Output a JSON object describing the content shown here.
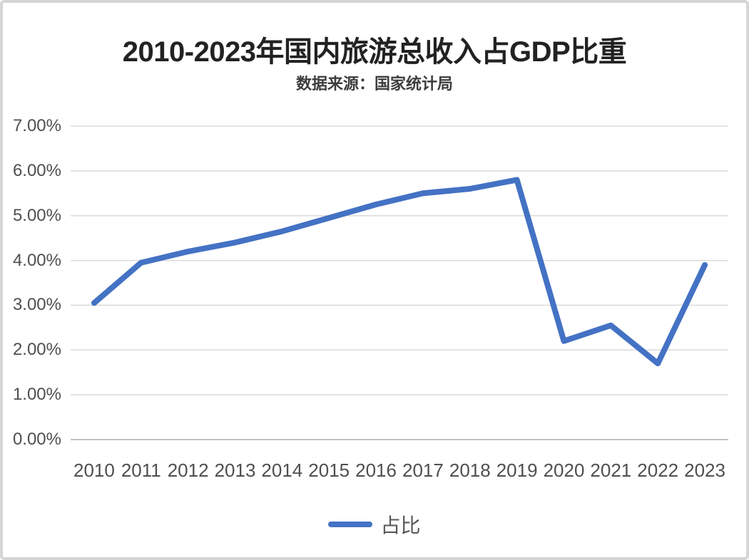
{
  "chart_data": {
    "type": "line",
    "title": "2010-2023年国内旅游总收入占GDP比重",
    "subtitle": "数据来源：国家统计局",
    "categories": [
      "2010",
      "2011",
      "2012",
      "2013",
      "2014",
      "2015",
      "2016",
      "2017",
      "2018",
      "2019",
      "2020",
      "2021",
      "2022",
      "2023"
    ],
    "series": [
      {
        "name": "占比",
        "color": "#4472C4",
        "values": [
          3.05,
          3.95,
          4.2,
          4.4,
          4.65,
          4.95,
          5.25,
          5.5,
          5.6,
          5.8,
          2.2,
          2.55,
          1.7,
          3.9
        ]
      }
    ],
    "ylim": [
      0,
      7
    ],
    "ytick_labels": [
      "0.00%",
      "1.00%",
      "2.00%",
      "3.00%",
      "4.00%",
      "5.00%",
      "6.00%",
      "7.00%"
    ],
    "xlabel": "",
    "ylabel": "",
    "grid": "horizontal",
    "gridline_color": "#dadada",
    "axis_line_color": "#c2c2c2",
    "legend_position": "bottom",
    "background_color": "#ffffff",
    "frame_border_color": "#d6d6d6"
  }
}
